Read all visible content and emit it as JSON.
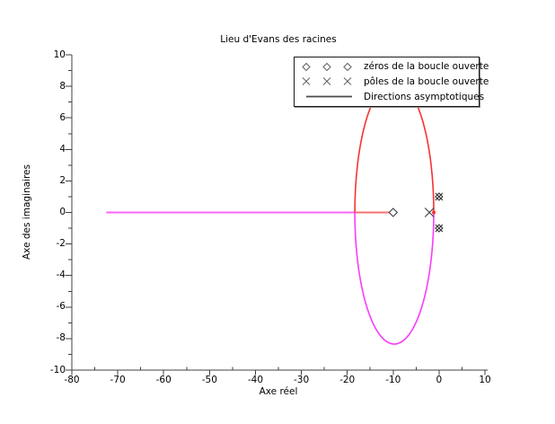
{
  "chart_data": {
    "type": "line",
    "subtype": "evans-root-locus",
    "title": "Lieu d'Evans des racines",
    "xlabel": "Axe réel",
    "ylabel": "Axe des imaginaires",
    "xlim": [
      -80,
      10
    ],
    "ylim": [
      -10,
      10
    ],
    "x_major_ticks": [
      -80,
      -70,
      -60,
      -50,
      -40,
      -30,
      -20,
      -10,
      0,
      10
    ],
    "x_minor_tick_step": 5,
    "y_major_ticks": [
      -10,
      -8,
      -6,
      -4,
      -2,
      0,
      2,
      4,
      6,
      8,
      10
    ],
    "y_minor_tick_step": 1,
    "grid": false,
    "legend_position": "top-right-inside",
    "legend": [
      {
        "marker": "diamond",
        "label": "zéros de la boucle ouverte",
        "color": "#666666"
      },
      {
        "marker": "x",
        "label": "pôles de la boucle ouverte",
        "color": "#666666"
      },
      {
        "marker": "line",
        "label": "Directions asymptotiques",
        "color": "#4a4a4a"
      }
    ],
    "open_loop_zeros": [
      [
        -10,
        0
      ],
      [
        0,
        1
      ],
      [
        0,
        -1
      ]
    ],
    "open_loop_poles": [
      [
        -2.1,
        0
      ],
      [
        0,
        1
      ],
      [
        0,
        -1
      ]
    ],
    "curves": [
      {
        "name": "branch-magenta-real-axis",
        "kind": "segment",
        "color": "#fa64fa",
        "width": 2,
        "points": [
          [
            -72.5,
            0
          ],
          [
            -18.35,
            0
          ]
        ]
      },
      {
        "name": "branch-red-real-axis",
        "kind": "segment",
        "color": "#f87272",
        "width": 2,
        "points": [
          [
            -18.35,
            0
          ],
          [
            -10.8,
            0
          ]
        ]
      },
      {
        "name": "branch-red-upper-ellipse",
        "kind": "half_ellipse",
        "half": "upper",
        "color": "#f83232",
        "width": 1.6,
        "cx": -9.75,
        "cy": 0,
        "rx": 8.6,
        "ry": 8.35
      },
      {
        "name": "branch-magenta-lower-ellipse",
        "kind": "half_ellipse",
        "half": "lower",
        "color": "#fa3cfa",
        "width": 1.6,
        "cx": -9.75,
        "cy": 0,
        "rx": 8.6,
        "ry": 8.35
      },
      {
        "name": "branch-red-vertex-point",
        "kind": "point",
        "color": "#f83232",
        "r": 2,
        "x": -1.15,
        "y": 0
      }
    ],
    "markers": [
      {
        "glyph": "diamond",
        "x": -10,
        "y": 0,
        "r": 4.5,
        "fill": "#ffffff"
      },
      {
        "glyph": "x",
        "x": -2.1,
        "y": 0,
        "r": 5
      },
      {
        "glyph": "x",
        "x": 0,
        "y": 1,
        "r": 4
      },
      {
        "glyph": "diamond",
        "x": 0,
        "y": 1,
        "r": 4
      },
      {
        "glyph": "x",
        "x": 0,
        "y": -1,
        "r": 4
      },
      {
        "glyph": "diamond",
        "x": 0,
        "y": -1,
        "r": 4
      }
    ],
    "colors": {
      "axis": "#404040",
      "marker": "#3c3c3c",
      "text": "#000000",
      "background": "#ffffff"
    }
  }
}
